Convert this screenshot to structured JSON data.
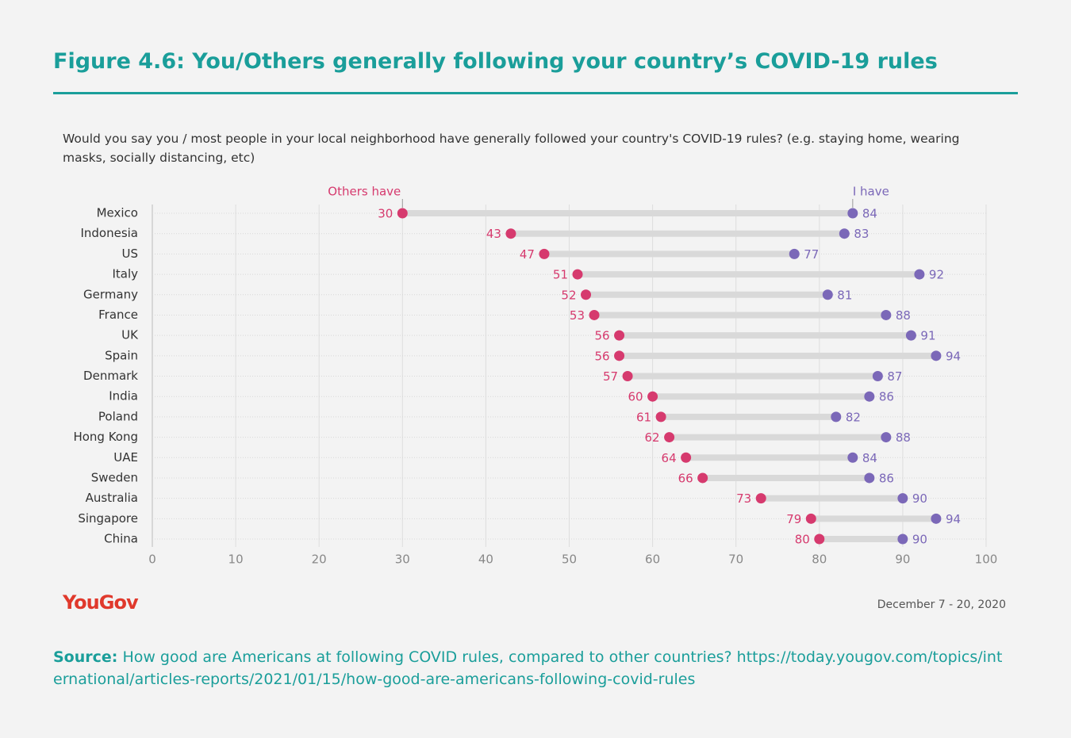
{
  "chart_data": {
    "type": "dumbbell",
    "title": "Figure 4.6: You/Others generally following your country’s COVID-19 rules",
    "subtitle": "Would you say you / most people in your local neighborhood have generally followed your country's COVID-19 rules? (e.g. staying home, wearing masks, socially distancing, etc)",
    "categories": [
      "Mexico",
      "Indonesia",
      "US",
      "Italy",
      "Germany",
      "France",
      "UK",
      "Spain",
      "Denmark",
      "India",
      "Poland",
      "Hong Kong",
      "UAE",
      "Sweden",
      "Australia",
      "Singapore",
      "China"
    ],
    "series": [
      {
        "name": "Others have",
        "color": "#d63a6e",
        "values": [
          30,
          43,
          47,
          51,
          52,
          53,
          56,
          56,
          57,
          60,
          61,
          62,
          64,
          66,
          73,
          79,
          80
        ]
      },
      {
        "name": "I have",
        "color": "#7b68b8",
        "values": [
          84,
          83,
          77,
          92,
          81,
          88,
          91,
          94,
          87,
          86,
          82,
          88,
          84,
          86,
          90,
          94,
          90
        ]
      }
    ],
    "xlim": [
      0,
      100
    ],
    "xticks": [
      0,
      10,
      20,
      30,
      40,
      50,
      60,
      70,
      80,
      90,
      100
    ],
    "grid": true,
    "logo": "YouGov",
    "date": "December 7 - 20, 2020",
    "source_label": "Source:",
    "source": "How good are Americans at following COVID rules, compared to other countries? https://today.yougov.com/topics/international/articles-reports/2021/01/15/how-good-are-americans-following-covid-rules"
  }
}
